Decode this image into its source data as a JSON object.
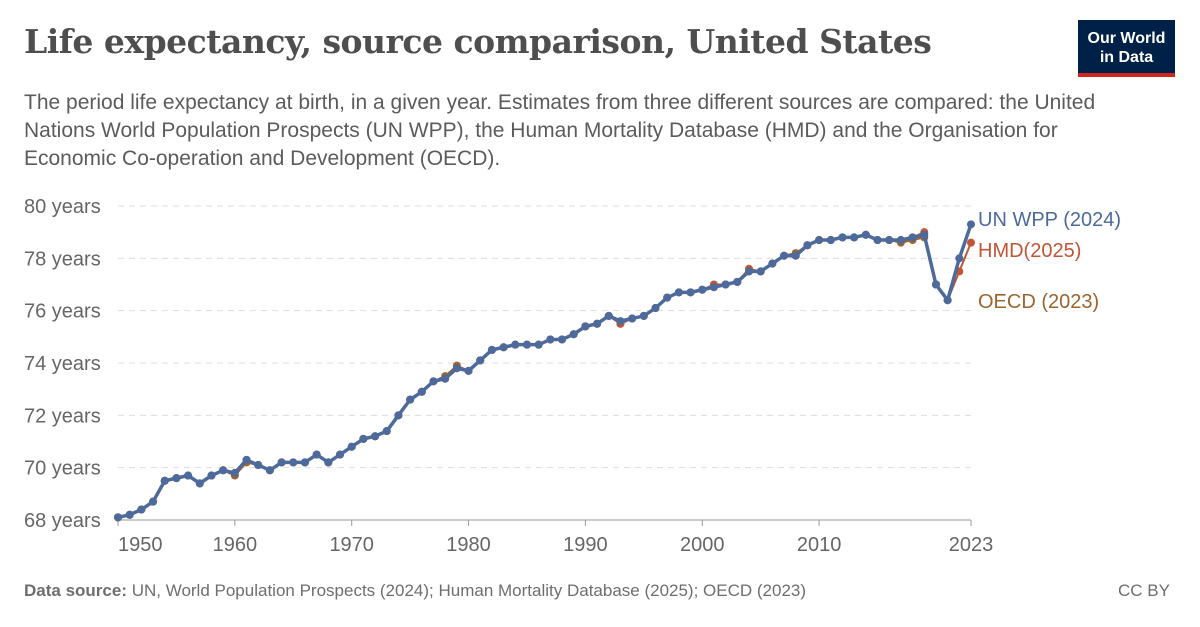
{
  "header": {
    "title": "Life expectancy, source comparison, United States",
    "subtitle": "The period life expectancy at birth, in a given year. Estimates from three different sources are compared: the United Nations World Population Prospects (UN WPP), the Human Mortality Database (HMD) and the Organisation for Economic Co-operation and Development (OECD).",
    "logo_text": "Our World in Data"
  },
  "footer": {
    "source_label": "Data source:",
    "source_text": " UN, World Population Prospects (2024); Human Mortality Database (2025); OECD (2023)",
    "license": "CC BY"
  },
  "chart_data": {
    "type": "line",
    "title": "Life expectancy, source comparison, United States",
    "xlim": [
      1950,
      2023
    ],
    "ylim": [
      68,
      80
    ],
    "x_ticks": [
      1950,
      1960,
      1970,
      1980,
      1990,
      2000,
      2010,
      2023
    ],
    "y_ticks": [
      68,
      70,
      72,
      74,
      76,
      78,
      80
    ],
    "y_tick_suffix": " years",
    "grid": "horizontal dashed",
    "legend": "right, end-of-line labels",
    "series": [
      {
        "name": "OECD (2023)",
        "color": "#9a652e",
        "start": 1950,
        "values": [
          68.1,
          68.2,
          68.4,
          68.7,
          69.5,
          69.6,
          69.7,
          69.4,
          69.7,
          69.9,
          69.7,
          70.2,
          70.1,
          69.9,
          70.2,
          70.2,
          70.2,
          70.5,
          70.2,
          70.5,
          70.8,
          71.1,
          71.2,
          71.4,
          72.0,
          72.6,
          72.9,
          73.3,
          73.5,
          73.9,
          73.7,
          74.1,
          74.5,
          74.6,
          74.7,
          74.7,
          74.7,
          74.9,
          74.9,
          75.1,
          75.4,
          75.5,
          75.8,
          75.5,
          75.7,
          75.8,
          76.1,
          76.5,
          76.7,
          76.7,
          76.8,
          76.9,
          77.0,
          77.1,
          77.5,
          77.5,
          77.8,
          78.1,
          78.2,
          78.5,
          78.7,
          78.7,
          78.8,
          78.8,
          78.9,
          78.7,
          78.7,
          78.6,
          78.7,
          78.8,
          77.0,
          76.4
        ]
      },
      {
        "name": "HMD(2025)",
        "color": "#c15534",
        "start": 1950,
        "values": [
          68.1,
          68.2,
          68.4,
          68.7,
          69.5,
          69.6,
          69.7,
          69.4,
          69.7,
          69.9,
          69.8,
          70.3,
          70.1,
          69.9,
          70.2,
          70.2,
          70.2,
          70.5,
          70.2,
          70.5,
          70.8,
          71.1,
          71.2,
          71.4,
          72.0,
          72.6,
          72.9,
          73.3,
          73.4,
          73.8,
          73.7,
          74.1,
          74.5,
          74.6,
          74.7,
          74.7,
          74.7,
          74.9,
          74.9,
          75.1,
          75.4,
          75.5,
          75.8,
          75.5,
          75.7,
          75.8,
          76.1,
          76.5,
          76.7,
          76.7,
          76.8,
          77.0,
          77.0,
          77.1,
          77.6,
          77.5,
          77.8,
          78.1,
          78.1,
          78.5,
          78.7,
          78.7,
          78.8,
          78.8,
          78.9,
          78.7,
          78.7,
          78.7,
          78.8,
          79.0,
          77.0,
          76.4,
          77.5,
          78.6
        ]
      },
      {
        "name": "UN WPP (2024)",
        "color": "#4c6a9c",
        "start": 1950,
        "values": [
          68.1,
          68.2,
          68.4,
          68.7,
          69.5,
          69.6,
          69.7,
          69.4,
          69.7,
          69.9,
          69.8,
          70.3,
          70.1,
          69.9,
          70.2,
          70.2,
          70.2,
          70.5,
          70.2,
          70.5,
          70.8,
          71.1,
          71.2,
          71.4,
          72.0,
          72.6,
          72.9,
          73.3,
          73.4,
          73.8,
          73.7,
          74.1,
          74.5,
          74.6,
          74.7,
          74.7,
          74.7,
          74.9,
          74.9,
          75.1,
          75.4,
          75.5,
          75.8,
          75.6,
          75.7,
          75.8,
          76.1,
          76.5,
          76.7,
          76.7,
          76.8,
          76.9,
          77.0,
          77.1,
          77.5,
          77.5,
          77.8,
          78.1,
          78.1,
          78.5,
          78.7,
          78.7,
          78.8,
          78.8,
          78.9,
          78.7,
          78.7,
          78.7,
          78.8,
          78.9,
          77.0,
          76.4,
          78.0,
          79.3
        ]
      }
    ]
  }
}
